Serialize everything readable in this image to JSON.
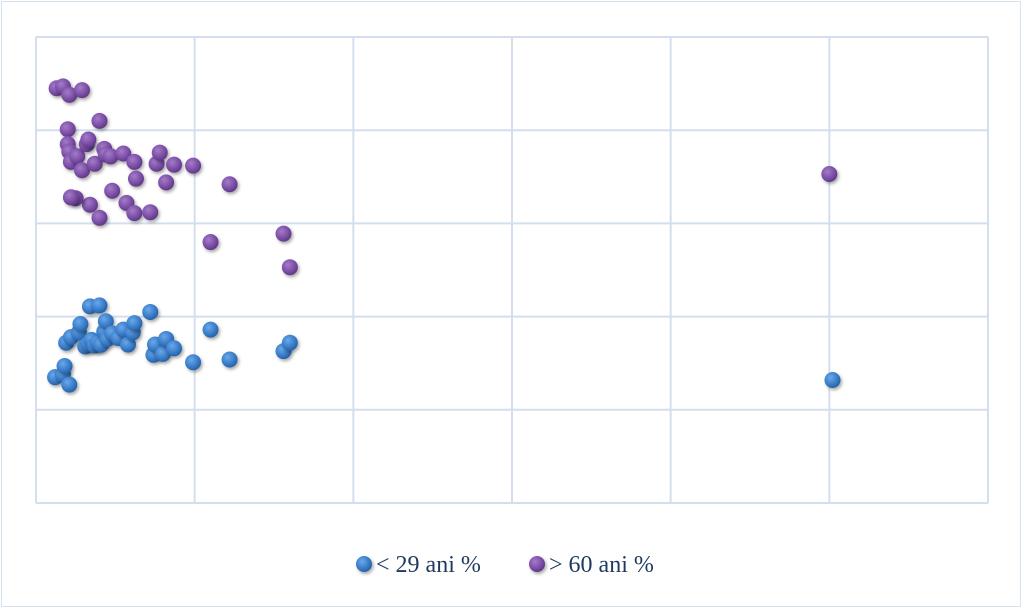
{
  "chart_data": {
    "type": "scatter",
    "title": "",
    "xlabel": "",
    "ylabel": "",
    "grid": true,
    "legend_position": "bottom",
    "xlim": [
      0,
      6
    ],
    "ylim": [
      0,
      5
    ],
    "series": [
      {
        "name": "< 29 ani %",
        "color": "#3a7dc9",
        "points": [
          [
            0.12,
            1.35
          ],
          [
            0.17,
            1.38
          ],
          [
            0.21,
            1.27
          ],
          [
            0.18,
            1.47
          ],
          [
            0.19,
            1.72
          ],
          [
            0.22,
            1.78
          ],
          [
            0.27,
            1.83
          ],
          [
            0.28,
            1.92
          ],
          [
            0.31,
            1.68
          ],
          [
            0.33,
            1.71
          ],
          [
            0.35,
            1.75
          ],
          [
            0.37,
            1.69
          ],
          [
            0.39,
            1.72
          ],
          [
            0.41,
            1.7
          ],
          [
            0.43,
            1.84
          ],
          [
            0.45,
            1.76
          ],
          [
            0.34,
            2.11
          ],
          [
            0.4,
            2.12
          ],
          [
            0.44,
            1.95
          ],
          [
            0.48,
            1.82
          ],
          [
            0.52,
            1.77
          ],
          [
            0.55,
            1.86
          ],
          [
            0.58,
            1.7
          ],
          [
            0.61,
            1.83
          ],
          [
            0.62,
            1.93
          ],
          [
            0.72,
            2.05
          ],
          [
            0.74,
            1.59
          ],
          [
            0.75,
            1.7
          ],
          [
            0.8,
            1.6
          ],
          [
            0.82,
            1.76
          ],
          [
            0.87,
            1.66
          ],
          [
            0.99,
            1.51
          ],
          [
            1.1,
            1.86
          ],
          [
            1.22,
            1.54
          ],
          [
            1.56,
            1.63
          ],
          [
            1.6,
            1.72
          ],
          [
            5.02,
            1.32
          ]
        ]
      },
      {
        "name": "> 60 ani %",
        "color": "#7d4fa8",
        "points": [
          [
            0.13,
            4.45
          ],
          [
            0.17,
            4.47
          ],
          [
            0.21,
            4.38
          ],
          [
            0.29,
            4.43
          ],
          [
            0.2,
            4.01
          ],
          [
            0.2,
            3.85
          ],
          [
            0.21,
            3.77
          ],
          [
            0.22,
            3.66
          ],
          [
            0.26,
            3.72
          ],
          [
            0.29,
            3.57
          ],
          [
            0.32,
            3.85
          ],
          [
            0.33,
            3.9
          ],
          [
            0.37,
            3.64
          ],
          [
            0.4,
            4.1
          ],
          [
            0.43,
            3.8
          ],
          [
            0.44,
            3.74
          ],
          [
            0.47,
            3.72
          ],
          [
            0.55,
            3.75
          ],
          [
            0.62,
            3.66
          ],
          [
            0.63,
            3.48
          ],
          [
            0.76,
            3.64
          ],
          [
            0.78,
            3.76
          ],
          [
            0.82,
            3.44
          ],
          [
            0.87,
            3.63
          ],
          [
            0.99,
            3.62
          ],
          [
            0.48,
            3.35
          ],
          [
            0.57,
            3.22
          ],
          [
            0.62,
            3.11
          ],
          [
            0.72,
            3.12
          ],
          [
            0.34,
            3.2
          ],
          [
            0.25,
            3.27
          ],
          [
            0.4,
            3.06
          ],
          [
            0.22,
            3.28
          ],
          [
            1.1,
            2.8
          ],
          [
            1.22,
            3.42
          ],
          [
            1.56,
            2.89
          ],
          [
            1.6,
            2.53
          ],
          [
            5.0,
            3.53
          ]
        ]
      }
    ]
  }
}
